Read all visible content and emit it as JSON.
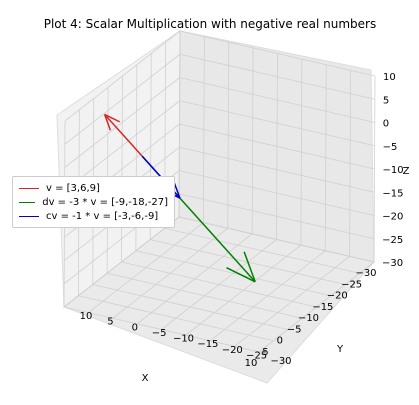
{
  "chart_data": {
    "type": "line",
    "projection": "3d",
    "title": "Plot 4: Scalar Multiplication with negative real numbers",
    "xlabel": "X",
    "ylabel": "Y",
    "zlabel": "Z",
    "xlim": [
      -30,
      10
    ],
    "ylim": [
      -30,
      10
    ],
    "zlim": [
      -30,
      10
    ],
    "x_ticks": [
      "−30",
      "−25",
      "−20",
      "−15",
      "−10",
      "−5",
      "0",
      "5",
      "10"
    ],
    "y_ticks": [
      "−30",
      "−25",
      "−20",
      "−15",
      "−10",
      "−5",
      "0",
      "5",
      "10"
    ],
    "z_ticks": [
      "−30",
      "−25",
      "−20",
      "−15",
      "−10",
      "−5",
      "0",
      "5",
      "10"
    ],
    "grid": true,
    "legend_position": "center-left",
    "series": [
      {
        "name": "v = [3,6,9]",
        "color": "#d62728",
        "vector": [
          3,
          6,
          9
        ]
      },
      {
        "name": "dv = -3 * v = [-9,-18,-27]",
        "color": "#008000",
        "vector": [
          -9,
          -18,
          -27
        ]
      },
      {
        "name": "cv = -1 * v = [-3,-6,-9]",
        "color": "#0000c8",
        "vector": [
          -3,
          -6,
          -9
        ]
      }
    ]
  }
}
